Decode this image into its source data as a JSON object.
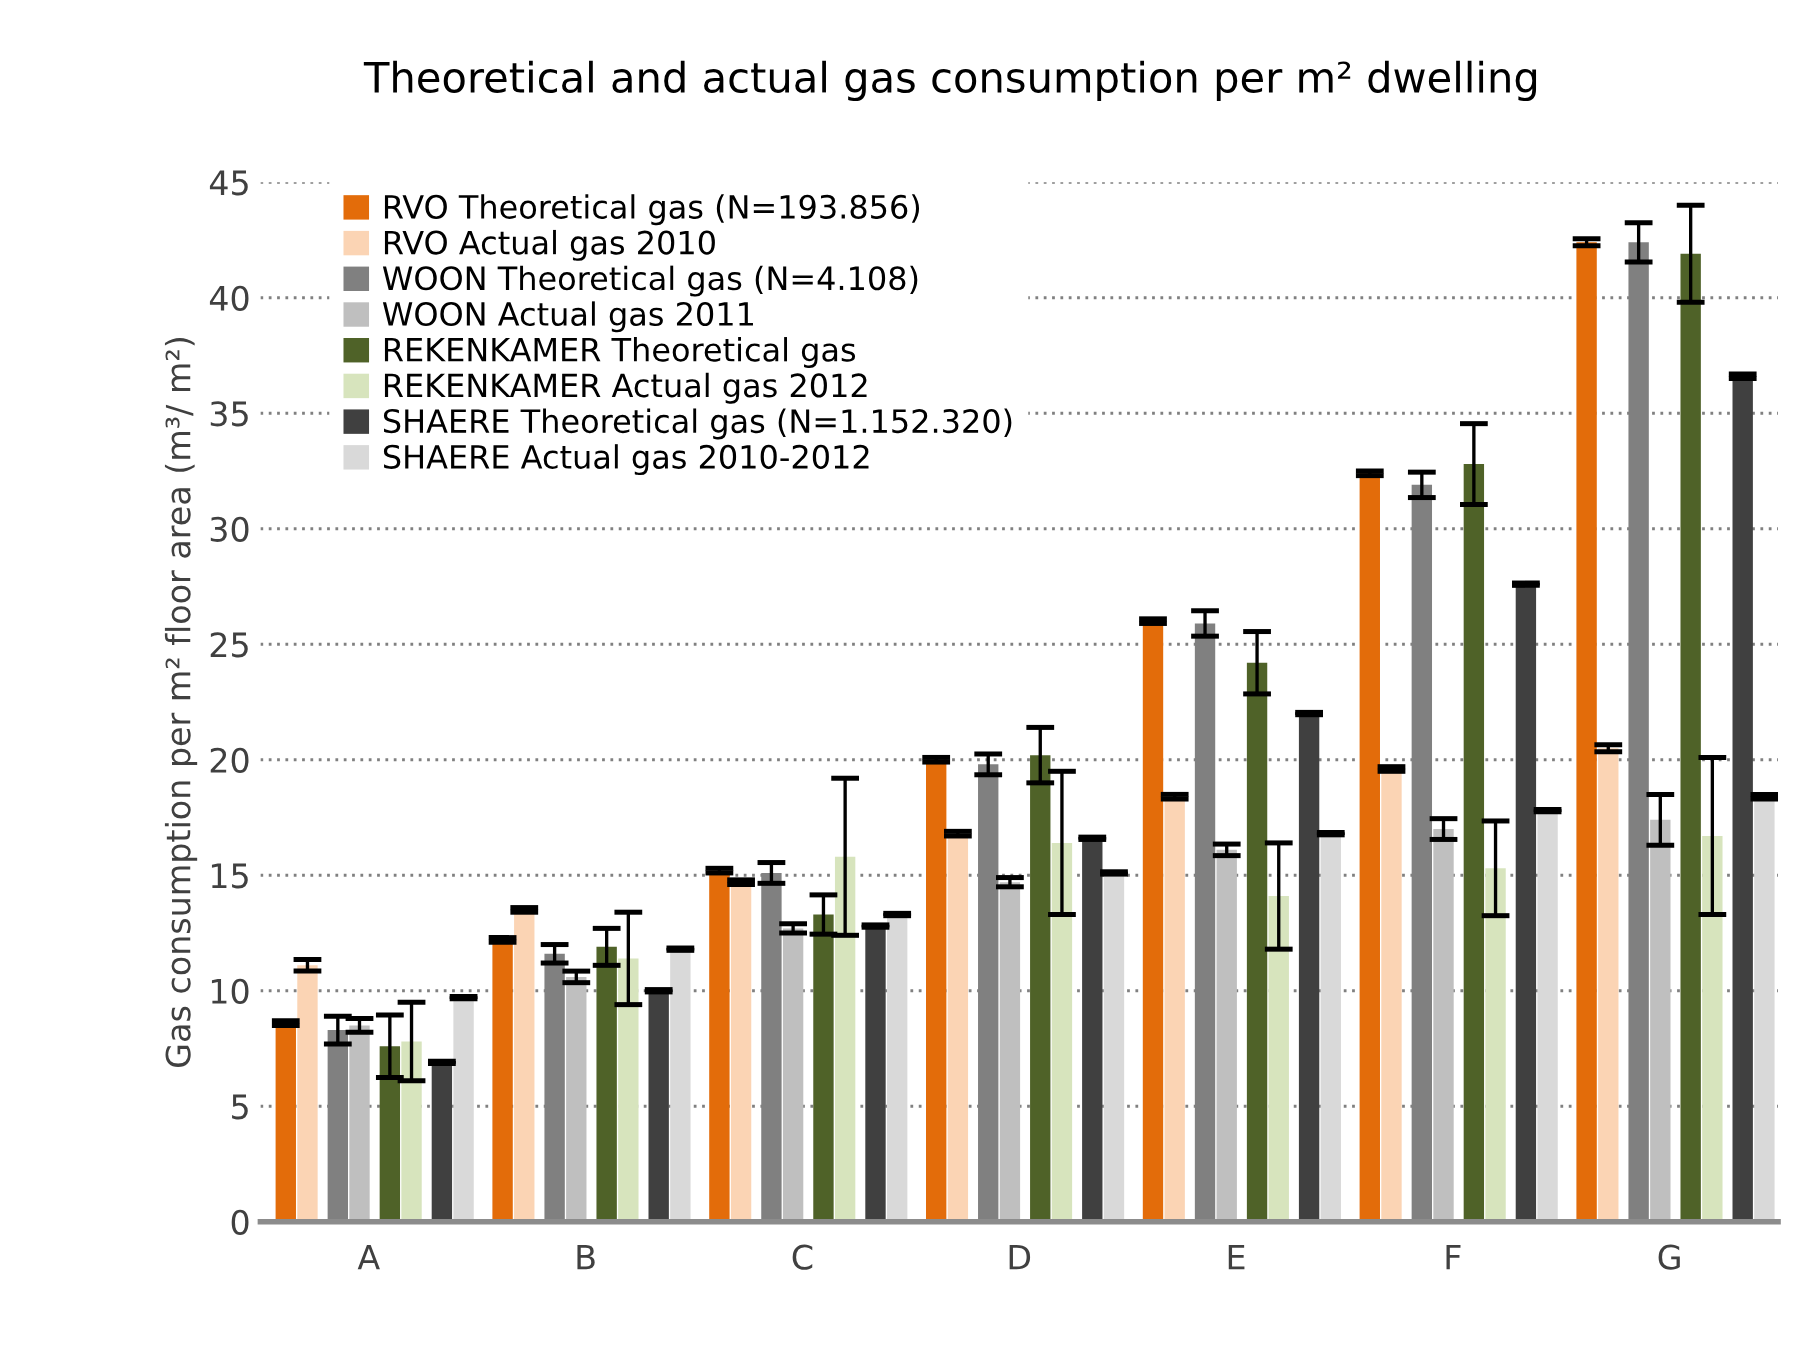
{
  "chart_data": {
    "type": "bar",
    "title": "Theoretical and actual gas consumption per m² dwelling",
    "ylabel": "Gas consumption per m² floor area (m³/ m²)",
    "categories": [
      "A",
      "B",
      "C",
      "D",
      "E",
      "F",
      "G"
    ],
    "ylim": [
      0,
      45
    ],
    "yticks": [
      0,
      5,
      10,
      15,
      20,
      25,
      30,
      35,
      40,
      45
    ],
    "grid": "y",
    "legend": "top left",
    "series": [
      {
        "name": "RVO Theoretical gas (N=193.856)",
        "color": "#e36c0a",
        "values": [
          8.6,
          12.2,
          15.2,
          20.0,
          26.0,
          32.4,
          42.4
        ],
        "errors": [
          0.1,
          0.1,
          0.1,
          0.1,
          0.1,
          0.1,
          0.15
        ]
      },
      {
        "name": "RVO Actual gas 2010",
        "color": "#fbd4b4",
        "values": [
          11.1,
          13.5,
          14.7,
          16.8,
          18.4,
          19.6,
          20.5
        ],
        "errors": [
          0.25,
          0.1,
          0.1,
          0.1,
          0.1,
          0.1,
          0.15
        ]
      },
      {
        "name": "WOON Theoretical gas (N=4.108)",
        "color": "#808080",
        "values": [
          8.3,
          11.6,
          15.1,
          19.8,
          25.9,
          31.9,
          42.4
        ],
        "errors": [
          0.6,
          0.4,
          0.45,
          0.45,
          0.55,
          0.55,
          0.85
        ]
      },
      {
        "name": "WOON Actual gas 2011",
        "color": "#bfbfbf",
        "values": [
          8.5,
          10.6,
          12.7,
          14.7,
          16.1,
          17.0,
          17.4
        ],
        "errors": [
          0.3,
          0.25,
          0.2,
          0.2,
          0.25,
          0.45,
          1.1
        ]
      },
      {
        "name": "REKENKAMER Theoretical gas",
        "color": "#4f6228",
        "values": [
          7.6,
          11.9,
          13.3,
          20.2,
          24.2,
          32.8,
          41.9
        ],
        "errors": [
          1.35,
          0.8,
          0.85,
          1.2,
          1.35,
          1.75,
          2.1
        ]
      },
      {
        "name": "REKENKAMER Actual gas 2012",
        "color": "#d7e4bd",
        "values": [
          7.8,
          11.4,
          15.8,
          16.4,
          14.1,
          15.3,
          16.7
        ],
        "errors": [
          1.7,
          2.0,
          3.4,
          3.1,
          2.3,
          2.05,
          3.4
        ]
      },
      {
        "name": "SHAERE Theoretical gas (N=1.152.320)",
        "color": "#404040",
        "values": [
          6.9,
          10.0,
          12.8,
          16.6,
          22.0,
          27.6,
          36.6
        ],
        "errors": [
          0.05,
          0.05,
          0.05,
          0.05,
          0.05,
          0.05,
          0.1
        ]
      },
      {
        "name": "SHAERE Actual gas 2010-2012",
        "color": "#d9d9d9",
        "values": [
          9.7,
          11.8,
          13.3,
          15.1,
          16.8,
          17.8,
          18.4
        ],
        "errors": [
          0.05,
          0.05,
          0.05,
          0.05,
          0.05,
          0.05,
          0.1
        ]
      }
    ]
  }
}
